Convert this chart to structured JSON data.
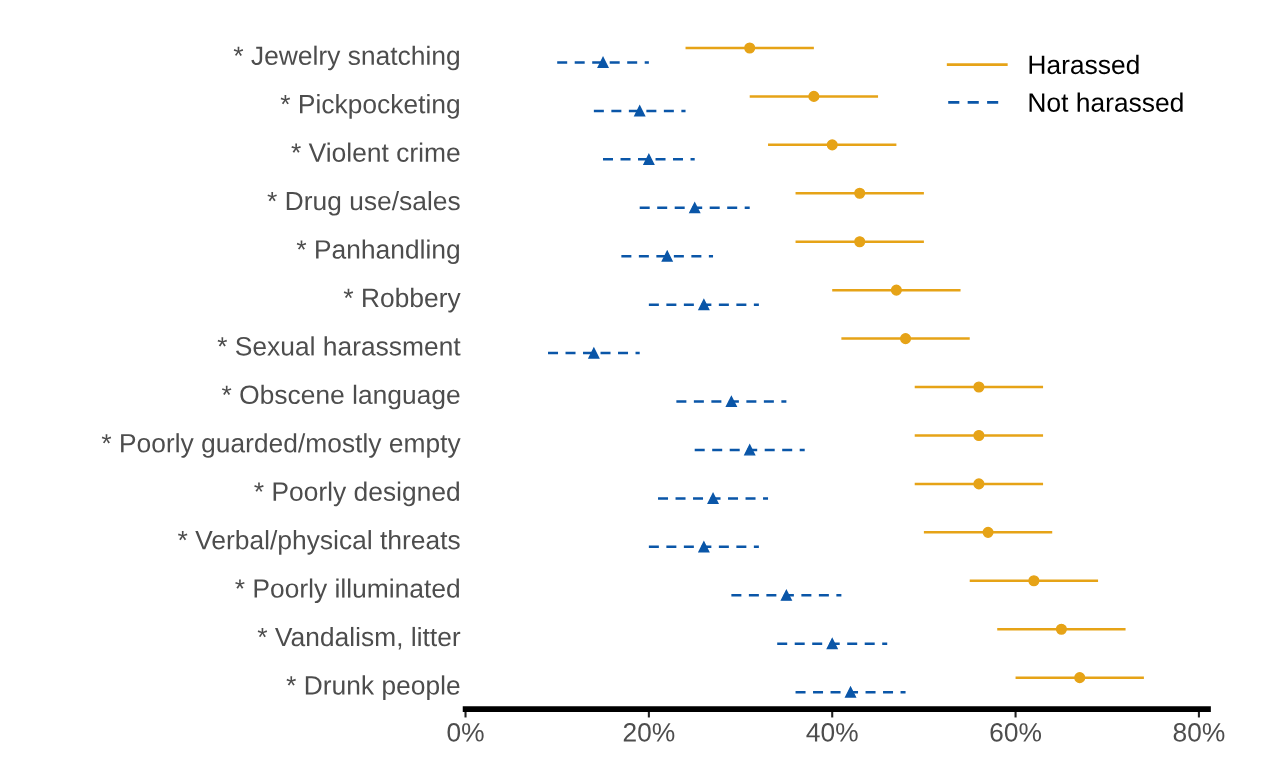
{
  "chart_data": {
    "type": "scatter",
    "orientation": "horizontal",
    "categories": [
      "* Jewelry snatching",
      "* Pickpocketing",
      "* Violent crime",
      "* Drug use/sales",
      "* Panhandling",
      "* Robbery",
      "* Sexual harassment",
      "* Obscene language",
      "* Poorly guarded/mostly empty",
      "* Poorly designed",
      "* Verbal/physical threats",
      "* Poorly illuminated",
      "* Vandalism, litter",
      "* Drunk people"
    ],
    "series": [
      {
        "name": "Harassed",
        "color": "#e6a317",
        "marker": "circle",
        "line_style": "solid",
        "values": [
          31,
          38,
          40,
          43,
          43,
          47,
          48,
          56,
          56,
          56,
          57,
          62,
          65,
          67
        ],
        "errors": [
          7,
          7,
          7,
          7,
          7,
          7,
          7,
          7,
          7,
          7,
          7,
          7,
          7,
          7
        ]
      },
      {
        "name": "Not harassed",
        "color": "#0a56a8",
        "marker": "triangle",
        "line_style": "dashed",
        "values": [
          15,
          19,
          20,
          25,
          22,
          26,
          14,
          29,
          31,
          27,
          26,
          35,
          40,
          42
        ],
        "errors": [
          5,
          5,
          5,
          6,
          5,
          6,
          5,
          6,
          6,
          6,
          6,
          6,
          6,
          6
        ]
      }
    ],
    "xlim": [
      0,
      81
    ],
    "xticks": [
      {
        "value": 0,
        "label": "0%"
      },
      {
        "value": 20,
        "label": "20%"
      },
      {
        "value": 40,
        "label": "40%"
      },
      {
        "value": 60,
        "label": "60%"
      },
      {
        "value": 80,
        "label": "80%"
      }
    ],
    "legend": "top right",
    "grid": false
  }
}
